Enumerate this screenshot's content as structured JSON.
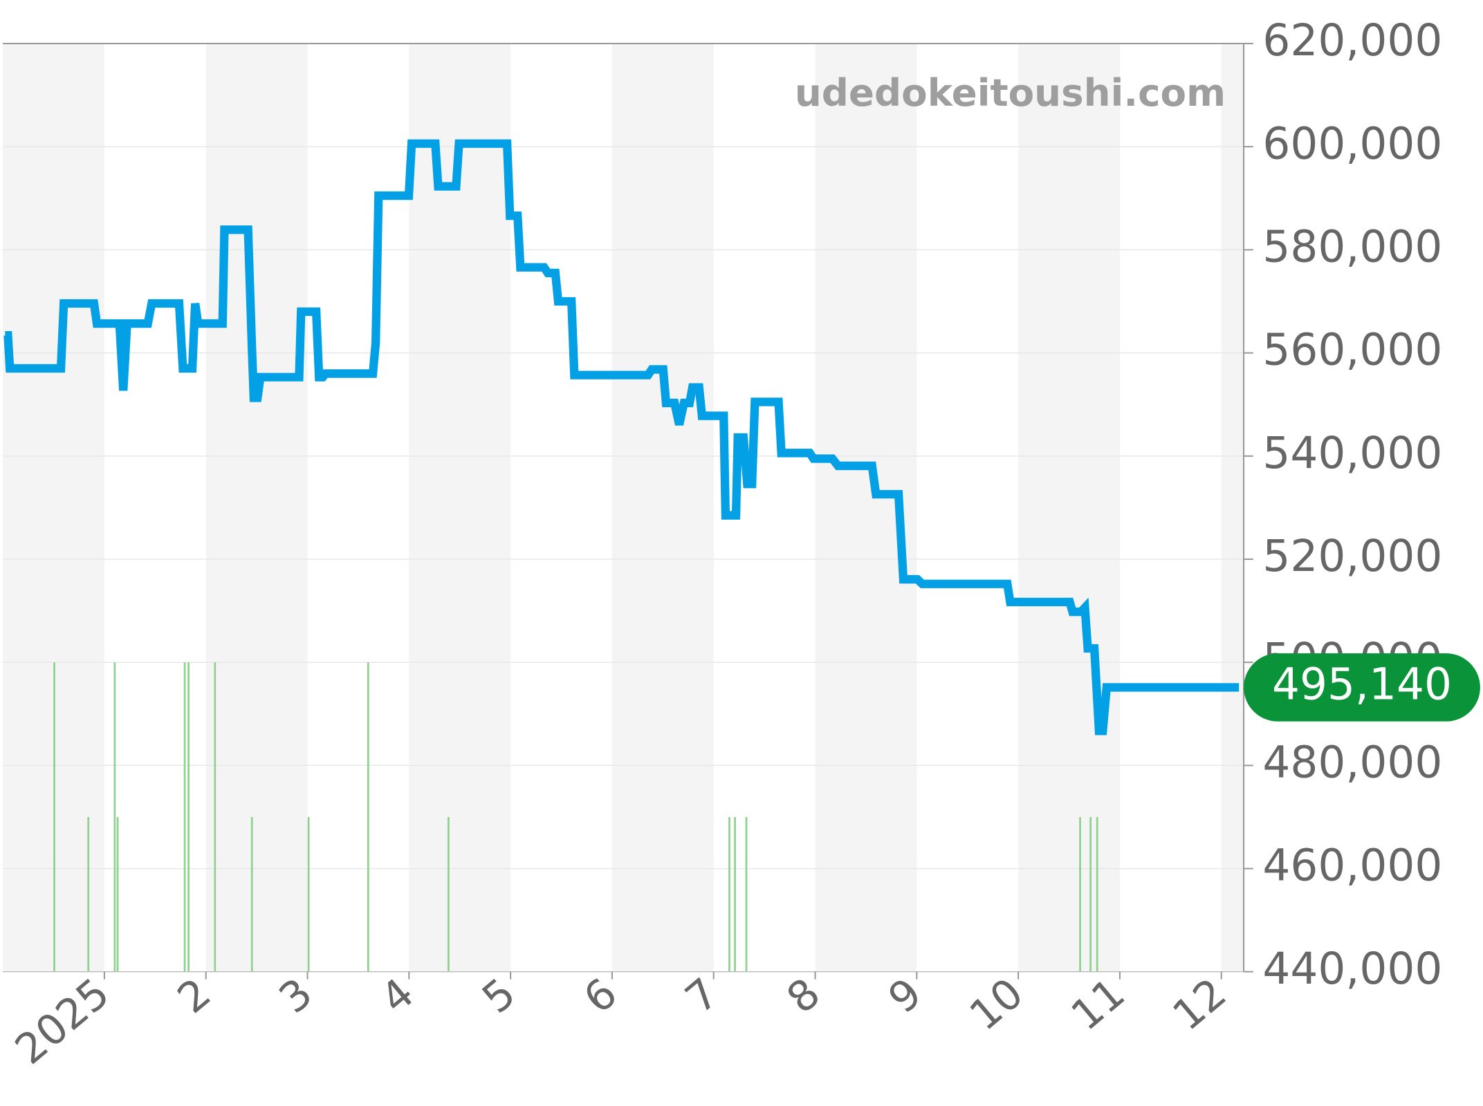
{
  "chart_data": {
    "type": "line",
    "watermark": "udedokeitoushi.com",
    "color": "#03a0e6",
    "x": [
      0.022,
      0.05,
      0.069,
      0.572,
      0.6,
      0.898,
      0.926,
      1.149,
      1.186,
      1.223,
      1.428,
      1.466,
      1.736,
      1.773,
      1.866,
      1.894,
      1.922,
      2.164,
      2.182,
      2.415,
      2.453,
      2.471,
      2.508,
      2.536,
      2.918,
      2.937,
      3.086,
      3.114,
      3.151,
      3.179,
      3.644,
      3.672,
      3.7,
      3.998,
      4.026,
      4.259,
      4.287,
      4.464,
      4.492,
      4.966,
      4.994,
      5.069,
      5.097,
      5.33,
      5.367,
      5.441,
      5.469,
      5.6,
      5.628,
      6.354,
      6.391,
      6.503,
      6.531,
      6.615,
      6.661,
      6.708,
      6.763,
      6.791,
      6.857,
      6.885,
      7.099,
      7.117,
      7.22,
      7.238,
      7.294,
      7.331,
      7.378,
      7.406,
      7.639,
      7.667,
      7.946,
      7.983,
      8.169,
      8.225,
      8.56,
      8.598,
      8.821,
      8.868,
      9.007,
      9.054,
      9.892,
      9.92,
      10.507,
      10.534,
      10.618,
      10.656,
      10.684,
      10.749,
      10.795,
      10.832,
      10.87,
      12.173
    ],
    "values": [
      563400,
      563400,
      557000,
      557000,
      569600,
      569600,
      565700,
      565700,
      552700,
      565700,
      565700,
      569600,
      569600,
      557000,
      557000,
      569600,
      565700,
      565700,
      583900,
      583900,
      561000,
      551300,
      551300,
      555300,
      555300,
      568000,
      568000,
      555300,
      555300,
      556000,
      556000,
      562000,
      590500,
      590500,
      600600,
      600600,
      592300,
      592300,
      600600,
      600600,
      586600,
      586600,
      576600,
      576600,
      575500,
      575500,
      570000,
      570000,
      555700,
      555700,
      556800,
      556800,
      550300,
      550300,
      546100,
      550300,
      550300,
      553300,
      553300,
      547800,
      547800,
      528500,
      528500,
      543600,
      543600,
      534600,
      534600,
      550500,
      550500,
      540600,
      540600,
      539500,
      539500,
      538100,
      538100,
      532600,
      532600,
      516100,
      516100,
      515200,
      515200,
      511700,
      511700,
      509800,
      509800,
      510600,
      502700,
      502700,
      486700,
      486700,
      495140,
      495140
    ],
    "last_label": {
      "value": 495140,
      "label": "495,140",
      "color": "#0a9338"
    },
    "bars": {
      "color": "#8fd18f",
      "axis": "y2",
      "x": [
        0.507,
        0.842,
        1.102,
        1.13,
        1.791,
        1.829,
        2.089,
        2.453,
        3.011,
        3.598,
        4.389,
        7.155,
        7.21,
        7.322,
        10.609,
        10.712,
        10.777
      ],
      "values": [
        2,
        1,
        2,
        1,
        2,
        2,
        2,
        1,
        1,
        2,
        1,
        1,
        1,
        1,
        1,
        1,
        1
      ]
    },
    "xlim": [
      0,
      12.22
    ],
    "xticks": [
      {
        "value": 1,
        "label": "2025"
      },
      2,
      3,
      4,
      5,
      6,
      7,
      8,
      9,
      10,
      11,
      12
    ],
    "ylim": [
      440000,
      620000
    ],
    "yticks": [
      {
        "value": 440000,
        "label": "440,000"
      },
      {
        "value": 460000,
        "label": "460,000"
      },
      {
        "value": 480000,
        "label": "480,000"
      },
      {
        "value": 500000,
        "label": "500,000"
      },
      {
        "value": 520000,
        "label": "520,000"
      },
      {
        "value": 540000,
        "label": "540,000"
      },
      {
        "value": 560000,
        "label": "560,000"
      },
      {
        "value": 580000,
        "label": "580,000"
      },
      {
        "value": 600000,
        "label": "600,000"
      },
      {
        "value": 620000,
        "label": "620,000"
      }
    ],
    "y2lim": [
      0,
      6
    ],
    "grid": true,
    "shaded_bands": true
  }
}
